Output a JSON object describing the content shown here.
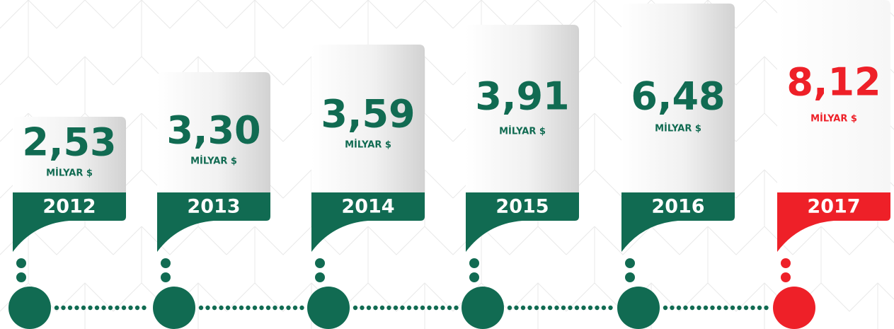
{
  "items": [
    {
      "value": "2,53",
      "unit": "MİLYAR $",
      "year": "2012"
    },
    {
      "value": "3,30",
      "unit": "MİLYAR $",
      "year": "2013"
    },
    {
      "value": "3,59",
      "unit": "MİLYAR $",
      "year": "2014"
    },
    {
      "value": "3,91",
      "unit": "MİLYAR $",
      "year": "2015"
    },
    {
      "value": "6,48",
      "unit": "MİLYAR $",
      "year": "2016"
    },
    {
      "value": "8,12",
      "unit": "MİLYAR $",
      "year": "2017"
    }
  ]
}
